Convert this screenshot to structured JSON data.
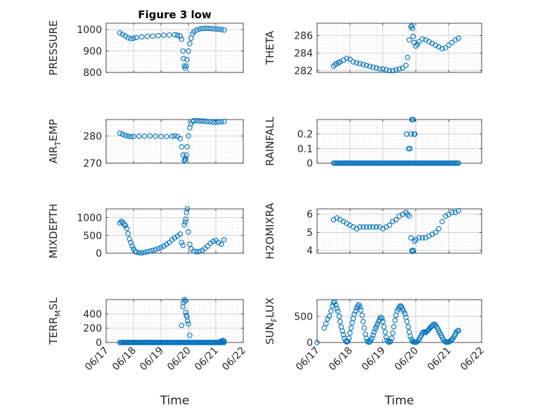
{
  "figure": {
    "title": "Figure 3 low"
  },
  "chart_data": [
    {
      "type": "scatter",
      "title": "Figure 3 low",
      "ylabel": "PRESSURE",
      "ylim": [
        800,
        1030
      ],
      "yticks": [
        800,
        900,
        1000
      ],
      "ytick_labels": [
        "800",
        "900",
        "1000"
      ],
      "grid": true,
      "x": [
        17.5,
        17.6,
        17.7,
        17.8,
        17.9,
        18.0,
        18.1,
        18.3,
        18.5,
        18.7,
        18.9,
        19.1,
        19.3,
        19.5,
        19.6,
        19.7,
        19.75,
        19.8,
        19.82,
        19.85,
        19.88,
        19.92,
        19.95,
        20.0,
        20.05,
        20.1,
        20.15,
        20.2,
        20.3,
        20.4,
        20.5,
        20.6,
        20.7,
        20.8,
        20.9,
        21.0,
        21.1,
        21.2,
        21.3
      ],
      "y": [
        985,
        978,
        970,
        962,
        958,
        960,
        963,
        966,
        968,
        970,
        972,
        974,
        975,
        976,
        974,
        970,
        955,
        900,
        865,
        830,
        820,
        830,
        860,
        900,
        935,
        960,
        980,
        990,
        998,
        1003,
        1005,
        1006,
        1006,
        1005,
        1004,
        1003,
        1002,
        1000,
        998
      ]
    },
    {
      "type": "scatter",
      "ylabel": "THETA",
      "ylim": [
        281.8,
        287.4
      ],
      "yticks": [
        282,
        284,
        286
      ],
      "ytick_labels": [
        "282",
        "284",
        "286"
      ],
      "grid": true,
      "x": [
        17.5,
        17.55,
        17.6,
        17.65,
        17.7,
        17.8,
        17.9,
        18.0,
        18.1,
        18.2,
        18.3,
        18.4,
        18.5,
        18.6,
        18.7,
        18.8,
        18.9,
        19.0,
        19.1,
        19.2,
        19.3,
        19.4,
        19.5,
        19.6,
        19.7,
        19.75,
        19.8,
        19.85,
        19.88,
        19.9,
        19.92,
        19.95,
        20.0,
        20.05,
        20.1,
        20.2,
        20.3,
        20.4,
        20.5,
        20.6,
        20.7,
        20.8,
        20.9,
        21.0,
        21.1,
        21.2,
        21.3
      ],
      "y": [
        282.5,
        282.7,
        282.8,
        282.9,
        283.0,
        283.2,
        283.4,
        283.3,
        283.0,
        282.9,
        282.8,
        282.7,
        282.6,
        282.5,
        282.4,
        282.3,
        282.2,
        282.2,
        282.1,
        282.0,
        282.0,
        282.1,
        282.2,
        282.3,
        282.6,
        283.5,
        285.5,
        287.0,
        287.1,
        286.8,
        285.9,
        285.2,
        284.8,
        285.0,
        285.3,
        285.6,
        285.5,
        285.3,
        285.1,
        284.9,
        284.7,
        284.5,
        284.6,
        284.9,
        285.2,
        285.5,
        285.7
      ]
    },
    {
      "type": "scatter",
      "ylabel": "AIR_TEMP",
      "ylabel_main": "AIR",
      "ylabel_sub": "T",
      "ylabel_rest": "EMP",
      "ylim": [
        270,
        286
      ],
      "yticks": [
        270,
        280
      ],
      "ytick_labels": [
        "270",
        "280"
      ],
      "grid": true,
      "x": [
        17.5,
        17.6,
        17.7,
        17.8,
        17.9,
        18.0,
        18.2,
        18.4,
        18.6,
        18.8,
        19.0,
        19.2,
        19.4,
        19.5,
        19.6,
        19.7,
        19.75,
        19.8,
        19.85,
        19.88,
        19.9,
        19.92,
        19.95,
        20.0,
        20.05,
        20.1,
        20.15,
        20.2,
        20.3,
        20.4,
        20.5,
        20.6,
        20.7,
        20.8,
        20.9,
        21.0,
        21.1,
        21.2,
        21.3
      ],
      "y": [
        281.0,
        280.6,
        280.2,
        279.9,
        279.7,
        279.8,
        279.9,
        279.9,
        280.0,
        279.9,
        279.8,
        279.8,
        279.9,
        280.0,
        279.8,
        279.0,
        276.0,
        273.0,
        271.0,
        271.2,
        271.8,
        273.0,
        276.0,
        280.0,
        283.0,
        284.5,
        285.3,
        285.6,
        285.6,
        285.5,
        285.5,
        285.4,
        285.3,
        285.2,
        285.0,
        285.0,
        285.1,
        285.2,
        285.3
      ]
    },
    {
      "type": "scatter",
      "ylabel": "RAINFALL",
      "ylim": [
        0,
        0.3
      ],
      "yticks": [
        0,
        0.1,
        0.2
      ],
      "ytick_labels": [
        "0",
        "0.1",
        "0.2"
      ],
      "grid": true,
      "zero_run": {
        "from": 17.5,
        "to": 21.3,
        "step": 0.04,
        "value": 0
      },
      "x": [
        19.72,
        19.78,
        19.82,
        19.86,
        19.88,
        19.9,
        19.92,
        19.95,
        19.97
      ],
      "y": [
        0.2,
        0.1,
        0.1,
        0.2,
        0.3,
        0.3,
        0.3,
        0.2,
        0.2
      ]
    },
    {
      "type": "scatter",
      "ylabel": "MIXDEPTH",
      "ylim": [
        0,
        1250
      ],
      "yticks": [
        0,
        500,
        1000
      ],
      "ytick_labels": [
        "0",
        "500",
        "1000"
      ],
      "grid": true,
      "x": [
        17.5,
        17.55,
        17.6,
        17.65,
        17.7,
        17.75,
        17.8,
        17.85,
        17.9,
        17.95,
        18.0,
        18.05,
        18.1,
        18.2,
        18.3,
        18.4,
        18.5,
        18.6,
        18.7,
        18.8,
        18.9,
        19.0,
        19.1,
        19.2,
        19.3,
        19.4,
        19.5,
        19.6,
        19.7,
        19.75,
        19.8,
        19.85,
        19.88,
        19.9,
        19.93,
        19.96,
        20.0,
        20.05,
        20.1,
        20.2,
        20.3,
        20.4,
        20.5,
        20.6,
        20.7,
        20.8,
        20.9,
        21.0,
        21.1,
        21.2,
        21.3
      ],
      "y": [
        850,
        900,
        870,
        820,
        780,
        700,
        550,
        400,
        300,
        200,
        120,
        60,
        30,
        10,
        5,
        20,
        40,
        60,
        80,
        100,
        130,
        160,
        200,
        250,
        300,
        380,
        430,
        480,
        540,
        300,
        220,
        800,
        880,
        960,
        1150,
        1250,
        600,
        250,
        120,
        60,
        40,
        50,
        80,
        130,
        200,
        280,
        330,
        360,
        300,
        250,
        380
      ]
    },
    {
      "type": "scatter",
      "ylabel": "H2OMIXRA",
      "ylim": [
        3.85,
        6.3
      ],
      "yticks": [
        4,
        5,
        6
      ],
      "ytick_labels": [
        "4",
        "5",
        "6"
      ],
      "grid": true,
      "x": [
        17.5,
        17.6,
        17.7,
        17.8,
        17.9,
        18.0,
        18.1,
        18.2,
        18.3,
        18.4,
        18.5,
        18.6,
        18.7,
        18.8,
        18.9,
        19.0,
        19.1,
        19.2,
        19.3,
        19.4,
        19.5,
        19.6,
        19.7,
        19.75,
        19.8,
        19.85,
        19.88,
        19.9,
        19.93,
        19.96,
        20.0,
        20.1,
        20.2,
        20.3,
        20.4,
        20.5,
        20.6,
        20.7,
        20.8,
        20.9,
        21.0,
        21.1,
        21.2,
        21.3
      ],
      "y": [
        5.7,
        5.8,
        5.7,
        5.6,
        5.5,
        5.4,
        5.3,
        5.2,
        5.3,
        5.3,
        5.3,
        5.3,
        5.3,
        5.3,
        5.3,
        5.2,
        5.3,
        5.4,
        5.6,
        5.7,
        5.9,
        6.0,
        6.1,
        6.0,
        5.9,
        4.7,
        4.0,
        3.95,
        4.0,
        4.5,
        4.6,
        4.7,
        4.7,
        4.7,
        4.8,
        4.9,
        5.0,
        5.2,
        5.6,
        5.9,
        6.0,
        6.1,
        6.1,
        6.2
      ]
    },
    {
      "type": "scatter",
      "ylabel": "TERR_MSL",
      "ylabel_main": "TERR",
      "ylabel_sub": "M",
      "ylabel_rest": "SL",
      "ylim": [
        0,
        600
      ],
      "yticks": [
        0,
        200,
        400
      ],
      "ytick_labels": [
        "0",
        "200",
        "400"
      ],
      "grid": true,
      "zero_run": {
        "from": 17.5,
        "to": 21.3,
        "step": 0.04,
        "value": 0
      },
      "x": [
        19.75,
        19.8,
        19.82,
        19.85,
        19.88,
        19.9,
        19.92,
        19.95,
        19.97,
        20.0,
        20.05,
        21.15,
        21.2,
        21.25,
        21.3
      ],
      "y": [
        240,
        500,
        560,
        600,
        580,
        420,
        380,
        360,
        300,
        260,
        100,
        10,
        20,
        30,
        20
      ]
    },
    {
      "type": "scatter",
      "ylabel": "SUN_FLUX",
      "ylabel_main": "SUN",
      "ylabel_sub": "F",
      "ylabel_rest": "LUX",
      "ylim": [
        0,
        820
      ],
      "yticks": [
        0,
        500
      ],
      "ytick_labels": [
        "0",
        "500"
      ],
      "grid": true,
      "x": [
        17.0,
        17.22,
        17.27,
        17.32,
        17.37,
        17.42,
        17.47,
        17.5,
        17.53,
        17.57,
        17.6,
        17.63,
        17.67,
        17.7,
        17.73,
        17.77,
        17.8,
        17.83,
        17.87,
        17.9,
        17.93,
        17.97,
        18.0,
        18.03,
        18.07,
        18.1,
        18.13,
        18.17,
        18.2,
        18.23,
        18.27,
        18.3,
        18.33,
        18.37,
        18.4,
        18.43,
        18.47,
        18.5,
        18.53,
        18.57,
        18.6,
        18.63,
        18.67,
        18.7,
        18.73,
        18.77,
        18.8,
        18.83,
        18.87,
        18.9,
        18.93,
        18.97,
        19.0,
        19.03,
        19.07,
        19.1,
        19.13,
        19.17,
        19.2,
        19.23,
        19.27,
        19.3,
        19.33,
        19.37,
        19.4,
        19.43,
        19.47,
        19.5,
        19.53,
        19.57,
        19.6,
        19.63,
        19.67,
        19.7,
        19.73,
        19.77,
        19.8,
        19.83,
        19.87,
        19.9,
        19.93,
        19.97,
        20.0,
        20.03,
        20.07,
        20.1,
        20.13,
        20.17,
        20.2,
        20.23,
        20.27,
        20.3,
        20.33,
        20.37,
        20.4,
        20.43,
        20.47,
        20.5,
        20.53,
        20.57,
        20.6,
        20.63,
        20.67,
        20.7,
        20.73,
        20.77,
        20.8,
        20.83,
        20.87,
        20.9,
        20.93,
        20.97,
        21.0,
        21.03,
        21.07,
        21.1,
        21.13,
        21.17,
        21.2,
        21.23,
        21.27,
        21.3
      ],
      "y": [
        0,
        280,
        360,
        450,
        500,
        600,
        700,
        760,
        780,
        720,
        650,
        600,
        500,
        400,
        300,
        220,
        150,
        80,
        30,
        10,
        20,
        80,
        180,
        280,
        380,
        460,
        540,
        600,
        660,
        700,
        720,
        680,
        620,
        520,
        400,
        280,
        160,
        80,
        20,
        5,
        10,
        40,
        80,
        140,
        200,
        260,
        300,
        350,
        400,
        440,
        480,
        460,
        400,
        300,
        200,
        100,
        40,
        10,
        5,
        20,
        80,
        180,
        300,
        420,
        520,
        600,
        640,
        680,
        700,
        680,
        640,
        600,
        550,
        480,
        400,
        300,
        200,
        120,
        60,
        20,
        10,
        5,
        5,
        10,
        30,
        60,
        100,
        140,
        180,
        200,
        200,
        190,
        210,
        230,
        250,
        280,
        300,
        320,
        340,
        350,
        330,
        300,
        260,
        220,
        180,
        140,
        100,
        60,
        30,
        10,
        5,
        5,
        10,
        20,
        40,
        60,
        80,
        120,
        160,
        200,
        220,
        230
      ]
    }
  ],
  "x_axis": {
    "range": [
      17,
      22
    ],
    "ticks": [
      17,
      18,
      19,
      20,
      21,
      22
    ],
    "tick_labels": [
      "06/17",
      "06/18",
      "06/19",
      "06/20",
      "06/21",
      "06/22"
    ],
    "label": "Time"
  },
  "colors": {
    "marker": "#0072bd",
    "axis": "#262626",
    "grid": "#d9d9d9"
  }
}
